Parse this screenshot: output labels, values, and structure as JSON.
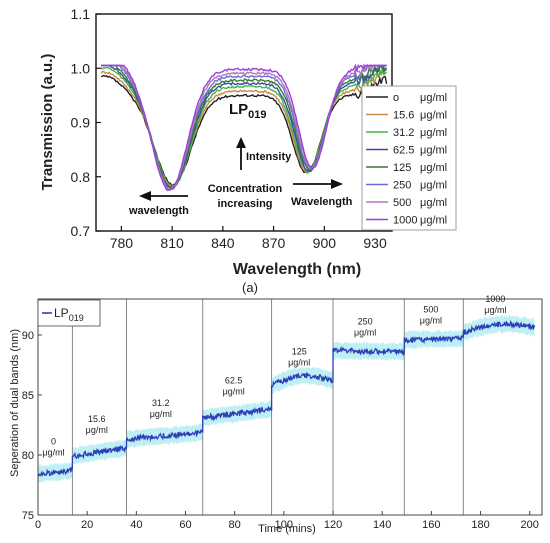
{
  "panel_caption": "(a)",
  "chart_data": [
    {
      "type": "line",
      "title": "",
      "xlabel": "Wavelength (nm)",
      "ylabel": "Transmission (a.u.)",
      "xlim": [
        765,
        940
      ],
      "ylim": [
        0.7,
        1.1
      ],
      "xticks": [
        "780",
        "810",
        "840",
        "870",
        "900",
        "930"
      ],
      "yticks": [
        "0.7",
        "0.8",
        "0.9",
        "1.0",
        "1.1"
      ],
      "legend_position": "right",
      "legend": [
        {
          "value": "o",
          "unit": "μg/ml",
          "color": "#222222",
          "peak": 0.95,
          "dip1": 810.5,
          "dip2": 889.5,
          "min1": 0.785,
          "min2": 0.807
        },
        {
          "value": "15.6",
          "unit": "μg/ml",
          "color": "#c9894a",
          "peak": 0.958,
          "dip1": 810.2,
          "dip2": 890.0,
          "min1": 0.783,
          "min2": 0.808
        },
        {
          "value": "31.2",
          "unit": "μg/ml",
          "color": "#44b844",
          "peak": 0.966,
          "dip1": 810.0,
          "dip2": 890.5,
          "min1": 0.781,
          "min2": 0.809
        },
        {
          "value": "62.5",
          "unit": "μg/ml",
          "color": "#3a4ea8",
          "peak": 0.972,
          "dip1": 809.7,
          "dip2": 891.0,
          "min1": 0.779,
          "min2": 0.81
        },
        {
          "value": "125",
          "unit": "μg/ml",
          "color": "#3d7a2a",
          "peak": 0.978,
          "dip1": 809.4,
          "dip2": 891.5,
          "min1": 0.778,
          "min2": 0.812
        },
        {
          "value": "250",
          "unit": "μg/ml",
          "color": "#6d6dd6",
          "peak": 0.985,
          "dip1": 809.1,
          "dip2": 892.0,
          "min1": 0.777,
          "min2": 0.814
        },
        {
          "value": "500",
          "unit": "μg/ml",
          "color": "#b07ab8",
          "peak": 0.991,
          "dip1": 808.8,
          "dip2": 892.5,
          "min1": 0.776,
          "min2": 0.815
        },
        {
          "value": "1000",
          "unit": "μg/ml",
          "color": "#9a3fe0",
          "peak": 0.998,
          "dip1": 808.5,
          "dip2": 893.0,
          "min1": 0.775,
          "min2": 0.816
        }
      ],
      "annotations": {
        "mode_label": "LP",
        "mode_sub": "019",
        "intensity": "Intensity",
        "concentration_1": "Concentration",
        "concentration_2": "increasing",
        "wavelength_left": "wavelength",
        "wavelength_right": "Wavelength"
      }
    },
    {
      "type": "line",
      "title": "",
      "xlabel": "Time (mins)",
      "ylabel": "Seperation of dual bands (nm)",
      "xlim": [
        0,
        205
      ],
      "ylim": [
        75,
        93
      ],
      "xticks": [
        0,
        20,
        40,
        60,
        80,
        100,
        120,
        140,
        160,
        180,
        200
      ],
      "yticks": [
        75,
        80,
        85,
        90
      ],
      "legend_position": "top-left",
      "series": [
        {
          "name_main": "LP",
          "name_sub": "019",
          "color": "#2a3fb8",
          "band_color": "#bfeff5"
        }
      ],
      "dividers": [
        14,
        36,
        67,
        95,
        120,
        149,
        173
      ],
      "segments": [
        {
          "t0": 0,
          "t1": 14,
          "v0": 78.4,
          "v1": 78.7,
          "value": "0",
          "unit": "μg/ml"
        },
        {
          "t0": 14,
          "t1": 36,
          "v0": 79.9,
          "v1": 80.6,
          "value": "15.6",
          "unit": "μg/ml"
        },
        {
          "t0": 36,
          "t1": 67,
          "v0": 81.3,
          "v1": 81.9,
          "value": "31.2",
          "unit": "μg/ml"
        },
        {
          "t0": 67,
          "t1": 95,
          "v0": 83.1,
          "v1": 83.8,
          "value": "62.5",
          "unit": "μg/ml"
        },
        {
          "t0": 95,
          "t1": 120,
          "v0": 85.8,
          "v1": 86.2,
          "value": "125",
          "unit": "μg/ml"
        },
        {
          "t0": 120,
          "t1": 149,
          "v0": 88.7,
          "v1": 88.6,
          "value": "250",
          "unit": "μg/ml"
        },
        {
          "t0": 149,
          "t1": 173,
          "v0": 89.6,
          "v1": 89.7,
          "value": "500",
          "unit": "μg/ml"
        },
        {
          "t0": 173,
          "t1": 202,
          "v0": 90.2,
          "v1": 90.6,
          "value": "1000",
          "unit": "μg/ml"
        }
      ]
    }
  ]
}
